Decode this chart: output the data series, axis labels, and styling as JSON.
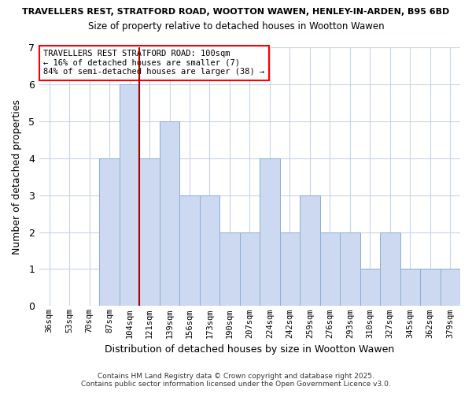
{
  "title_line1": "TRAVELLERS REST, STRATFORD ROAD, WOOTTON WAWEN, HENLEY-IN-ARDEN, B95 6BD",
  "title_line2": "Size of property relative to detached houses in Wootton Wawen",
  "xlabel": "Distribution of detached houses by size in Wootton Wawen",
  "ylabel": "Number of detached properties",
  "categories": [
    "36sqm",
    "53sqm",
    "70sqm",
    "87sqm",
    "104sqm",
    "121sqm",
    "139sqm",
    "156sqm",
    "173sqm",
    "190sqm",
    "207sqm",
    "224sqm",
    "242sqm",
    "259sqm",
    "276sqm",
    "293sqm",
    "310sqm",
    "327sqm",
    "345sqm",
    "362sqm",
    "379sqm"
  ],
  "values": [
    0,
    0,
    0,
    4,
    6,
    4,
    5,
    3,
    3,
    2,
    2,
    4,
    2,
    3,
    2,
    2,
    1,
    2,
    1,
    1,
    1
  ],
  "ylim": [
    0,
    7
  ],
  "yticks": [
    0,
    1,
    2,
    3,
    4,
    5,
    6,
    7
  ],
  "bar_color": "#cdd9f0",
  "bar_edge_color": "#8aafd4",
  "grid_color": "#c8d4e8",
  "vline_x_index": 4,
  "vline_color": "#aa0000",
  "annotation_title": "TRAVELLERS REST STRATFORD ROAD: 100sqm",
  "annotation_line2": "← 16% of detached houses are smaller (7)",
  "annotation_line3": "84% of semi-detached houses are larger (38) →",
  "footnote1": "Contains HM Land Registry data © Crown copyright and database right 2025.",
  "footnote2": "Contains public sector information licensed under the Open Government Licence v3.0.",
  "bg_color": "#ffffff",
  "plot_bg_color": "#ffffff"
}
